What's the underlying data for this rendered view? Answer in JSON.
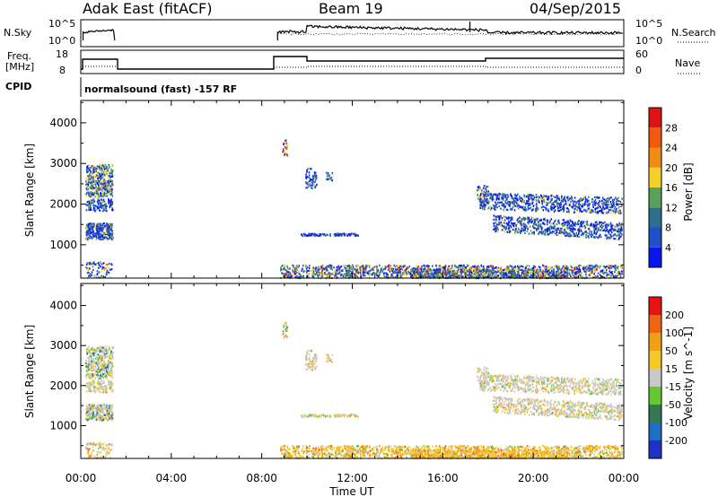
{
  "header": {
    "station": "Adak East (fitACF)",
    "beam": "Beam 19",
    "date": "04/Sep/2015"
  },
  "noise_panel": {
    "left_label": "N.Sky",
    "right_label": "N.Search",
    "ticks_left": [
      "10^5",
      "10^0"
    ],
    "ticks_right": [
      "10^5",
      "10^0"
    ]
  },
  "freq_panel": {
    "left_label_1": "Freq.",
    "left_label_2": "[MHz]",
    "right_label": "Nave",
    "ticks_left": [
      "18",
      "8"
    ],
    "ticks_right": [
      "60",
      "0"
    ]
  },
  "cpid": {
    "label": "CPID",
    "text": "normalsound (fast) -157 RF"
  },
  "chart_data": [
    {
      "type": "heatmap",
      "panel": "power",
      "ylabel": "Slant Range [km]",
      "ylim": [
        180,
        4550
      ],
      "yticks": [
        "1000",
        "2000",
        "3000",
        "4000"
      ],
      "colorbar_label": "Power [dB]",
      "colorbar_ticks": [
        "4",
        "8",
        "12",
        "16",
        "20",
        "24",
        "28"
      ],
      "colorbar_colors": [
        "#0a14f0",
        "#1e50c8",
        "#2d6e8c",
        "#5aa05a",
        "#f5d028",
        "#f08c14",
        "#f05a0a",
        "#dc1414"
      ]
    },
    {
      "type": "heatmap",
      "panel": "velocity",
      "ylabel": "Slant Range [km]",
      "ylim": [
        180,
        4550
      ],
      "yticks": [
        "1000",
        "2000",
        "3000",
        "4000"
      ],
      "colorbar_label": "Velocity [m s^-1]",
      "colorbar_ticks": [
        "200",
        "100",
        "50",
        "15",
        "-15",
        "-50",
        "-100",
        "-200"
      ],
      "colorbar_colors": [
        "#1e32c8",
        "#1e6ec8",
        "#327850",
        "#64c832",
        "#c8c8c8",
        "#f5c828",
        "#f0a014",
        "#f06414",
        "#e61414"
      ]
    }
  ],
  "time_axis": {
    "label": "Time UT",
    "ticks": [
      "00:00",
      "04:00",
      "08:00",
      "12:00",
      "16:00",
      "20:00",
      "00:00"
    ]
  }
}
